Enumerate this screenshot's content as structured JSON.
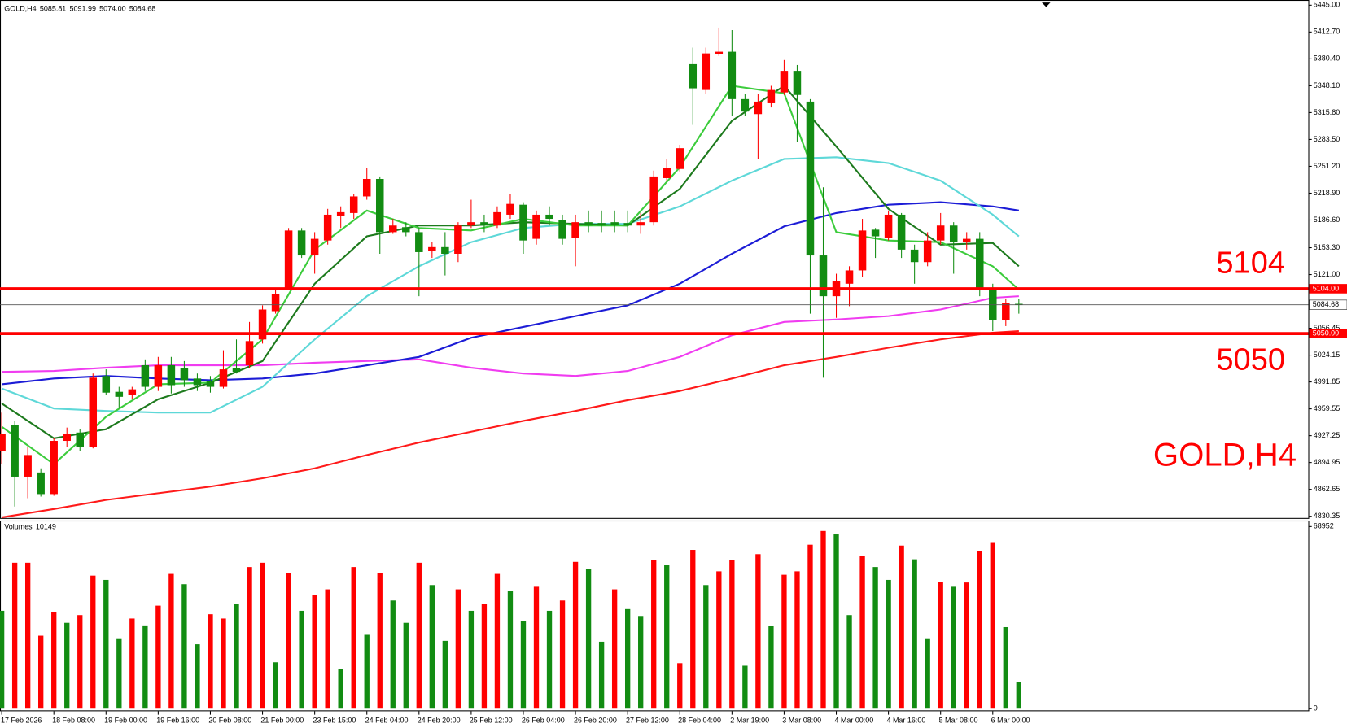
{
  "chart_data": {
    "type": "candlestick",
    "title": "GOLD,H4",
    "header": {
      "values": [
        5085.81,
        5091.99,
        5074,
        5084.68
      ],
      "value_labels": [
        "5085.81",
        "5091.99",
        "5074.00",
        "5084.68"
      ]
    },
    "categories": [
      "17 Feb 2026",
      null,
      null,
      null,
      "18 Feb 08:00",
      null,
      null,
      null,
      "19 Feb 00:00",
      null,
      null,
      null,
      "19 Feb 16:00",
      null,
      null,
      null,
      "20 Feb 08:00",
      null,
      null,
      null,
      "21 Feb 00:00",
      null,
      null,
      null,
      "23 Feb 15:00",
      null,
      null,
      null,
      "24 Feb 04:00",
      null,
      null,
      null,
      "24 Feb 20:00",
      null,
      null,
      null,
      "25 Feb 12:00",
      null,
      null,
      null,
      "26 Feb 04:00",
      null,
      null,
      null,
      "26 Feb 20:00",
      null,
      null,
      null,
      "27 Feb 12:00",
      null,
      null,
      null,
      "28 Feb 04:00",
      null,
      null,
      null,
      "2 Mar 19:00",
      null,
      null,
      null,
      "3 Mar 08:00",
      null,
      null,
      null,
      "4 Mar 00:00",
      null,
      null,
      null,
      "4 Mar 16:00",
      null,
      null,
      null,
      "5 Mar 08:00",
      null,
      null,
      null,
      "6 Mar 00:00",
      null,
      null
    ],
    "open": [
      4909,
      4940,
      4878,
      4883,
      4857,
      4921,
      4931,
      4914,
      4999,
      4980,
      4976,
      5012,
      4986,
      5012,
      5009,
      4996,
      4993,
      4986,
      5009,
      5012,
      5043,
      5077,
      5105,
      5174,
      5144,
      5162,
      5191,
      5195,
      5215,
      5236,
      5172,
      5178,
      5172,
      5149,
      5154,
      5146,
      5180,
      5184,
      5180,
      5193,
      5205,
      5164,
      5193,
      5187,
      5165,
      5184,
      5183,
      5184,
      5183,
      5180,
      5184,
      5237,
      5248,
      5374,
      5343,
      5386,
      5389,
      5332,
      5314,
      5327,
      5340,
      5366,
      5329,
      5144,
      5095,
      5110,
      5126,
      5175,
      5165,
      5193,
      5151,
      5136,
      5162,
      5180,
      5160,
      5164,
      5102,
      5066,
      5085.81
    ],
    "high": [
      4955,
      4945,
      4914,
      4888,
      4924,
      4937,
      4935,
      5002,
      5007,
      4986,
      4986,
      5019,
      5022,
      5022,
      5017,
      5002,
      4999,
      5030,
      5043,
      5064,
      5084,
      5105,
      5177,
      5177,
      5172,
      5200,
      5203,
      5218,
      5249,
      5239,
      5188,
      5184,
      5177,
      5160,
      5172,
      5184,
      5211,
      5193,
      5203,
      5218,
      5208,
      5198,
      5203,
      5193,
      5193,
      5198,
      5198,
      5198,
      5198,
      5195,
      5246,
      5260,
      5277,
      5394,
      5394,
      5418,
      5415,
      5338,
      5338,
      5348,
      5379,
      5373,
      5332,
      5226,
      5122,
      5131,
      5188,
      5177,
      5198,
      5195,
      5157,
      5172,
      5195,
      5184,
      5172,
      5172,
      5110,
      5092,
      5091.99
    ],
    "low": [
      4893,
      4842,
      4852,
      4854,
      4855,
      4914,
      4909,
      4912,
      4976,
      4960,
      4971,
      4981,
      4981,
      4978,
      4986,
      4981,
      4979,
      4984,
      5002,
      5009,
      5038,
      5074,
      5102,
      5141,
      5122,
      5157,
      5177,
      5188,
      5211,
      5146,
      5170,
      5167,
      5095,
      5141,
      5120,
      5136,
      5177,
      5172,
      5177,
      5188,
      5146,
      5157,
      5180,
      5157,
      5131,
      5172,
      5172,
      5172,
      5172,
      5170,
      5180,
      5234,
      5245,
      5301,
      5338,
      5384,
      5312,
      5312,
      5260,
      5322,
      5337,
      5281,
      5074,
      4997,
      5069,
      5083,
      5118,
      5141,
      5162,
      5141,
      5110,
      5131,
      5157,
      5122,
      5151,
      5095,
      5053,
      5059,
      5074
    ],
    "close": [
      4929,
      4878,
      4904,
      4857,
      4921,
      4929,
      4914,
      4997,
      4979,
      4974,
      4983,
      4986,
      5012,
      4988,
      4994,
      4988,
      4986,
      5007,
      5004,
      5041,
      5079,
      5098,
      5174,
      5144,
      5164,
      5193,
      5196,
      5215,
      5236,
      5172,
      5180,
      5172,
      5148,
      5154,
      5146,
      5180,
      5184,
      5180,
      5196,
      5206,
      5162,
      5193,
      5188,
      5164,
      5184,
      5180,
      5180,
      5181,
      5180,
      5184,
      5239,
      5249,
      5273,
      5345,
      5387,
      5389,
      5332,
      5317,
      5329,
      5343,
      5366,
      5337,
      5144,
      5095,
      5113,
      5126,
      5174,
      5167,
      5193,
      5151,
      5136,
      5162,
      5180,
      5160,
      5164,
      5102,
      5066,
      5087,
      5084.68
    ],
    "up_color": "#ff0000",
    "down_color": "#128c12",
    "ylim": [
      4830.35,
      5445
    ],
    "yticks": [
      {
        "value": 5445,
        "label": "5445.00"
      },
      {
        "value": 5412.7,
        "label": "5412.70"
      },
      {
        "value": 5380.4,
        "label": "5380.40"
      },
      {
        "value": 5348.1,
        "label": "5348.10"
      },
      {
        "value": 5315.8,
        "label": "5315.80"
      },
      {
        "value": 5283.5,
        "label": "5283.50"
      },
      {
        "value": 5251.2,
        "label": "5251.20"
      },
      {
        "value": 5218.9,
        "label": "5218.90"
      },
      {
        "value": 5186.6,
        "label": "5186.60"
      },
      {
        "value": 5153.3,
        "label": "5153.30"
      },
      {
        "value": 5121,
        "label": "5121.00"
      },
      {
        "value": 5056.45,
        "label": "5056.45"
      },
      {
        "value": 5024.15,
        "label": "5024.15"
      },
      {
        "value": 4991.85,
        "label": "4991.85"
      },
      {
        "value": 4959.55,
        "label": "4959.55"
      },
      {
        "value": 4927.25,
        "label": "4927.25"
      },
      {
        "value": 4894.95,
        "label": "4894.95"
      },
      {
        "value": 4862.65,
        "label": "4862.65"
      },
      {
        "value": 4830.35,
        "label": "4830.35"
      }
    ],
    "levels": [
      {
        "value": 5104,
        "label": "5104.00",
        "text": "5104",
        "color": "#ff0000"
      },
      {
        "value": 5050,
        "label": "5050.00",
        "text": "5050",
        "color": "#ff0000"
      }
    ],
    "current_price": {
      "value": 5084.68,
      "label": "5084.68"
    },
    "moving_averages": {
      "x": [
        0,
        4,
        8,
        12,
        16,
        20,
        24,
        28,
        32,
        36,
        40,
        44,
        48,
        52,
        56,
        60,
        64,
        68,
        72,
        76,
        78
      ],
      "series": [
        {
          "color": "#ff1a1a",
          "values": [
            4829,
            4839,
            4850,
            4858,
            4866,
            4876,
            4888,
            4904,
            4919,
            4932,
            4945,
            4957,
            4970,
            4981,
            4996,
            5012,
            5022,
            5033,
            5043,
            5051,
            5053
          ]
        },
        {
          "color": "#f03cf0",
          "values": [
            5004,
            5005,
            5009,
            5012,
            5012,
            5012,
            5015,
            5017,
            5019,
            5009,
            5002,
            4999,
            5005,
            5022,
            5048,
            5064,
            5067,
            5071,
            5079,
            5093,
            5095
          ]
        },
        {
          "color": "#1c1cd6",
          "values": [
            4989,
            4996,
            4999,
            4996,
            4994,
            4996,
            5002,
            5012,
            5022,
            5045,
            5058,
            5071,
            5084,
            5110,
            5146,
            5179,
            5195,
            5205,
            5208,
            5203,
            5198
          ]
        },
        {
          "color": "#5ed8d8",
          "values": [
            4984,
            4960,
            4957,
            4955,
            4955,
            4986,
            5043,
            5095,
            5131,
            5160,
            5177,
            5182,
            5182,
            5203,
            5234,
            5260,
            5262,
            5255,
            5234,
            5193,
            5167
          ]
        },
        {
          "color": "#1d7a1d",
          "values": [
            4966,
            4924,
            4935,
            4971,
            4991,
            5017,
            5110,
            5167,
            5180,
            5180,
            5184,
            5182,
            5180,
            5224,
            5306,
            5348,
            5275,
            5200,
            5157,
            5159,
            5131
          ]
        },
        {
          "color": "#3ccc3c",
          "values": [
            4938,
            4893,
            4950,
            4989,
            4991,
            5043,
            5151,
            5198,
            5177,
            5174,
            5188,
            5180,
            5180,
            5250,
            5348,
            5339,
            5172,
            5162,
            5160,
            5131,
            5103
          ]
        }
      ]
    },
    "volume": {
      "name": "Volumes",
      "values": [
        37050,
        55250,
        55250,
        27625,
        36725,
        32500,
        35425,
        50375,
        48750,
        26650,
        34125,
        31525,
        39000,
        51025,
        47125,
        24375,
        35750,
        34125,
        39650,
        53625,
        55250,
        17550,
        51350,
        37050,
        42900,
        45175,
        14950,
        53625,
        27950,
        51350,
        40950,
        32500,
        55250,
        46800,
        25675,
        45175,
        37050,
        39650,
        51025,
        44525,
        33150,
        46150,
        37050,
        40950,
        55575,
        52975,
        25350,
        45175,
        37700,
        35100,
        56225,
        54275,
        17225,
        60125,
        46800,
        52000,
        56225,
        16250,
        58500,
        31200,
        50700,
        52000,
        62075,
        67275,
        65975,
        35425,
        57850,
        53625,
        48750,
        61750,
        56550,
        26650,
        48100,
        46150,
        47775,
        59800,
        63050,
        30875,
        10149
      ],
      "colors": [
        "#128c12",
        "#ff0000",
        "#ff0000",
        "#ff0000",
        "#ff0000",
        "#128c12",
        "#ff0000",
        "#ff0000",
        "#128c12",
        "#128c12",
        "#ff0000",
        "#128c12",
        "#ff0000",
        "#ff0000",
        "#128c12",
        "#128c12",
        "#ff0000",
        "#ff0000",
        "#128c12",
        "#ff0000",
        "#ff0000",
        "#128c12",
        "#ff0000",
        "#128c12",
        "#ff0000",
        "#ff0000",
        "#128c12",
        "#ff0000",
        "#128c12",
        "#ff0000",
        "#128c12",
        "#128c12",
        "#ff0000",
        "#128c12",
        "#128c12",
        "#ff0000",
        "#128c12",
        "#ff0000",
        "#ff0000",
        "#128c12",
        "#128c12",
        "#ff0000",
        "#128c12",
        "#ff0000",
        "#ff0000",
        "#128c12",
        "#128c12",
        "#ff0000",
        "#128c12",
        "#128c12",
        "#ff0000",
        "#128c12",
        "#ff0000",
        "#ff0000",
        "#128c12",
        "#ff0000",
        "#ff0000",
        "#128c12",
        "#ff0000",
        "#128c12",
        "#ff0000",
        "#ff0000",
        "#ff0000",
        "#ff0000",
        "#128c12",
        "#128c12",
        "#ff0000",
        "#128c12",
        "#128c12",
        "#ff0000",
        "#128c12",
        "#128c12",
        "#ff0000",
        "#128c12",
        "#ff0000",
        "#ff0000",
        "#ff0000",
        "#128c12",
        "#128c12"
      ],
      "ylim": [
        0,
        68952
      ],
      "yticks": [
        0,
        68952
      ]
    }
  }
}
